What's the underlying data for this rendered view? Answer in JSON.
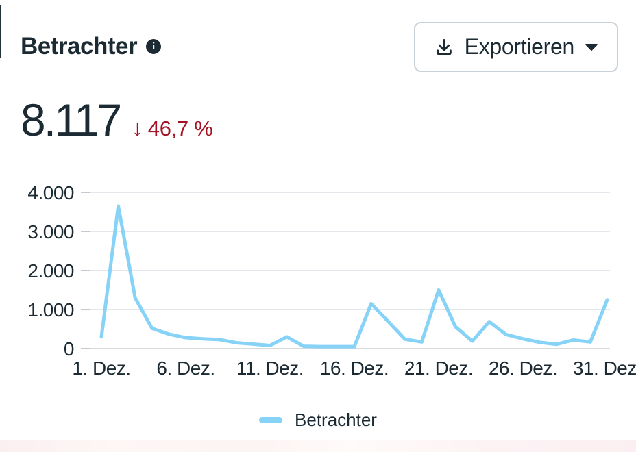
{
  "header": {
    "title": "Betrachter",
    "info_glyph": "i",
    "export": {
      "label": "Exportieren"
    }
  },
  "metric": {
    "value": "8.117",
    "trend_direction": "down",
    "arrow": "↓",
    "delta": "46,7 %"
  },
  "colors": {
    "text": "#1c2b33",
    "negative_red": "#a31324",
    "line_blue": "#87d2f7",
    "gridline": "#e3e6ea",
    "zero_line": "#d6dadd",
    "axis_tick": "#c3c9cf",
    "button_border": "#c9d0d8"
  },
  "chart_data": {
    "type": "line",
    "title": "Betrachter",
    "xlabel": "",
    "ylabel": "",
    "ylim": [
      0,
      4000
    ],
    "grid": true,
    "legend_position": "bottom",
    "x": [
      1,
      2,
      3,
      4,
      5,
      6,
      7,
      8,
      9,
      10,
      11,
      12,
      13,
      14,
      15,
      16,
      17,
      18,
      19,
      20,
      21,
      22,
      23,
      24,
      25,
      26,
      27,
      28,
      29,
      30,
      31
    ],
    "x_tick_labels": [
      {
        "day": 1,
        "label": "1. Dez."
      },
      {
        "day": 6,
        "label": "6. Dez."
      },
      {
        "day": 11,
        "label": "11. Dez."
      },
      {
        "day": 16,
        "label": "16. Dez."
      },
      {
        "day": 21,
        "label": "21. Dez."
      },
      {
        "day": 26,
        "label": "26. Dez."
      },
      {
        "day": 31,
        "label": "31. Dez."
      }
    ],
    "y_ticks": [
      {
        "value": 0,
        "label": "0"
      },
      {
        "value": 1000,
        "label": "1.000"
      },
      {
        "value": 2000,
        "label": "2.000"
      },
      {
        "value": 3000,
        "label": "3.000"
      },
      {
        "value": 4000,
        "label": "4.000"
      }
    ],
    "series": [
      {
        "name": "Betrachter",
        "color": "#87d2f7",
        "values": [
          300,
          3650,
          1300,
          520,
          370,
          280,
          250,
          230,
          150,
          115,
          80,
          300,
          60,
          50,
          50,
          50,
          1150,
          700,
          240,
          170,
          1500,
          560,
          190,
          690,
          360,
          250,
          160,
          110,
          220,
          170,
          1250
        ]
      }
    ]
  },
  "legend": {
    "items": [
      {
        "label": "Betrachter",
        "color": "#87d2f7"
      }
    ]
  }
}
